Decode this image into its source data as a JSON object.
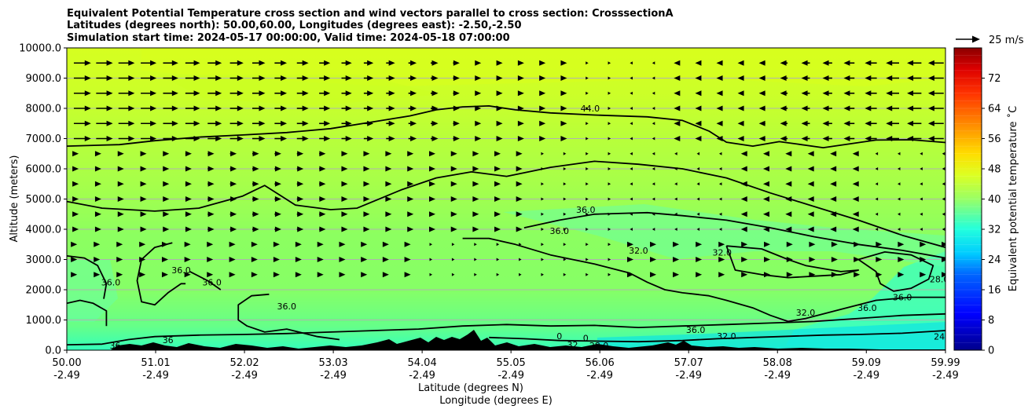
{
  "chart_data": {
    "type": "heatmap",
    "title_lines": [
      "Equivalent Potential Temperature cross section and wind vectors parallel to cross section: CrosssectionA",
      "Latitudes (degrees north): 50.00,60.00, Longitudes (degrees east): -2.50,-2.50",
      "Simulation start time: 2024-05-17 00:00:00, Valid time: 2024-05-18 07:00:00"
    ],
    "ylabel": "Altitude (meters)",
    "xlabel_lat": "Latitude (degrees N)",
    "xlabel_lon": "Longitude (degrees E)",
    "ylim": [
      0,
      10000
    ],
    "y_ticks": [
      {
        "value": 0,
        "label": "0.0"
      },
      {
        "value": 1000,
        "label": "1000.0"
      },
      {
        "value": 2000,
        "label": "2000.0"
      },
      {
        "value": 3000,
        "label": "3000.0"
      },
      {
        "value": 4000,
        "label": "4000.0"
      },
      {
        "value": 5000,
        "label": "5000.0"
      },
      {
        "value": 6000,
        "label": "6000.0"
      },
      {
        "value": 7000,
        "label": "7000.0"
      },
      {
        "value": 8000,
        "label": "8000.0"
      },
      {
        "value": 9000,
        "label": "9000.0"
      },
      {
        "value": 10000,
        "label": "10000.0"
      }
    ],
    "xlim": [
      50.0,
      59.99
    ],
    "x_ticks": [
      {
        "value": 50.0,
        "lat": "50.00",
        "lon": "-2.49"
      },
      {
        "value": 51.01,
        "lat": "51.01",
        "lon": "-2.49"
      },
      {
        "value": 52.02,
        "lat": "52.02",
        "lon": "-2.49"
      },
      {
        "value": 53.03,
        "lat": "53.03",
        "lon": "-2.49"
      },
      {
        "value": 54.04,
        "lat": "54.04",
        "lon": "-2.49"
      },
      {
        "value": 55.05,
        "lat": "55.05",
        "lon": "-2.49"
      },
      {
        "value": 56.06,
        "lat": "56.06",
        "lon": "-2.49"
      },
      {
        "value": 57.07,
        "lat": "57.07",
        "lon": "-2.49"
      },
      {
        "value": 58.08,
        "lat": "58.08",
        "lon": "-2.49"
      },
      {
        "value": 59.09,
        "lat": "59.09",
        "lon": "-2.49"
      },
      {
        "value": 59.99,
        "lat": "59.99",
        "lon": "-2.49"
      }
    ],
    "grid_horizontal": true,
    "colorbar": {
      "label": "Equivalent potential temperature ˚C",
      "range": [
        0,
        80
      ],
      "ticks": [
        0,
        8,
        16,
        24,
        32,
        40,
        48,
        56,
        64,
        72
      ],
      "tick_labels": [
        "0",
        "8",
        "16",
        "24",
        "32",
        "40",
        "48",
        "56",
        "64",
        "72"
      ]
    },
    "quiver_key": {
      "label": "25 m/s",
      "value": 25
    },
    "contours": [
      {
        "level": 44.0,
        "label": "44.0",
        "points": [
          [
            50.0,
            6750
          ],
          [
            50.6,
            6800
          ],
          [
            51.0,
            6930
          ],
          [
            51.5,
            7050
          ],
          [
            52.0,
            7120
          ],
          [
            52.5,
            7200
          ],
          [
            53.0,
            7330
          ],
          [
            53.5,
            7560
          ],
          [
            53.9,
            7750
          ],
          [
            54.2,
            7950
          ],
          [
            54.5,
            8050
          ],
          [
            54.8,
            8080
          ],
          [
            55.1,
            7950
          ],
          [
            55.5,
            7850
          ],
          [
            56.0,
            7780
          ],
          [
            56.6,
            7720
          ],
          [
            57.0,
            7600
          ],
          [
            57.3,
            7250
          ],
          [
            57.5,
            6880
          ],
          [
            57.8,
            6750
          ],
          [
            58.1,
            6900
          ],
          [
            58.3,
            6820
          ],
          [
            58.6,
            6700
          ],
          [
            59.2,
            6950
          ],
          [
            59.6,
            6960
          ],
          [
            59.99,
            6870
          ]
        ]
      },
      {
        "level": 40.0,
        "label": "",
        "points": [
          [
            50.0,
            4920
          ],
          [
            50.4,
            4700
          ],
          [
            51.0,
            4600
          ],
          [
            51.5,
            4700
          ],
          [
            52.0,
            5100
          ],
          [
            52.25,
            5450
          ],
          [
            52.6,
            4800
          ],
          [
            53.0,
            4650
          ],
          [
            53.3,
            4700
          ],
          [
            53.8,
            5300
          ],
          [
            54.2,
            5700
          ],
          [
            54.6,
            5900
          ],
          [
            55.0,
            5750
          ],
          [
            55.5,
            6050
          ],
          [
            56.0,
            6250
          ],
          [
            56.5,
            6150
          ],
          [
            57.0,
            6000
          ],
          [
            57.5,
            5700
          ],
          [
            58.0,
            5200
          ],
          [
            58.5,
            4750
          ],
          [
            59.0,
            4300
          ],
          [
            59.5,
            3800
          ],
          [
            59.99,
            3400
          ]
        ]
      },
      {
        "level": 36.0,
        "label": "36.0",
        "points": [
          [
            54.5,
            3700
          ],
          [
            54.8,
            3700
          ],
          [
            55.1,
            3500
          ],
          [
            55.5,
            3150
          ],
          [
            56.0,
            2850
          ],
          [
            56.4,
            2550
          ],
          [
            56.6,
            2250
          ],
          [
            56.8,
            2000
          ],
          [
            57.0,
            1900
          ],
          [
            57.3,
            1800
          ],
          [
            57.5,
            1650
          ],
          [
            57.8,
            1400
          ],
          [
            58.0,
            1150
          ],
          [
            58.2,
            950
          ],
          [
            58.4,
            1050
          ],
          [
            58.8,
            1350
          ],
          [
            59.2,
            1650
          ],
          [
            59.6,
            1750
          ],
          [
            59.99,
            1750
          ]
        ]
      },
      {
        "level": 36.0,
        "label": "36.0",
        "points": [
          [
            55.2,
            4050
          ],
          [
            55.6,
            4300
          ],
          [
            56.0,
            4500
          ],
          [
            56.6,
            4550
          ],
          [
            57.0,
            4450
          ],
          [
            57.5,
            4300
          ],
          [
            58.0,
            4050
          ],
          [
            58.5,
            3750
          ],
          [
            59.0,
            3500
          ],
          [
            59.5,
            3300
          ],
          [
            59.99,
            3050
          ]
        ]
      },
      {
        "level": 32.0,
        "label": "32.0",
        "points": [
          [
            57.5,
            3450
          ],
          [
            57.9,
            3350
          ],
          [
            58.2,
            3000
          ],
          [
            58.4,
            2800
          ],
          [
            58.6,
            2700
          ],
          [
            58.8,
            2600
          ],
          [
            59.0,
            2650
          ],
          [
            58.8,
            2500
          ],
          [
            58.5,
            2450
          ],
          [
            58.2,
            2400
          ],
          [
            57.9,
            2500
          ],
          [
            57.6,
            2650
          ],
          [
            57.5,
            3450
          ]
        ]
      },
      {
        "level": 36.0,
        "label": "36.0",
        "points": [
          [
            50.0,
            1550
          ],
          [
            50.15,
            1650
          ],
          [
            50.3,
            1550
          ],
          [
            50.45,
            1300
          ],
          [
            50.45,
            800
          ]
        ]
      },
      {
        "level": 36.0,
        "label": "36.0",
        "points": [
          [
            50.0,
            3120
          ],
          [
            50.2,
            3050
          ],
          [
            50.35,
            2800
          ],
          [
            50.45,
            2200
          ],
          [
            50.42,
            1700
          ]
        ]
      },
      {
        "level": 36.0,
        "label": "36.0",
        "points": [
          [
            51.2,
            3550
          ],
          [
            51.0,
            3400
          ],
          [
            50.85,
            3000
          ],
          [
            50.8,
            2300
          ],
          [
            50.85,
            1600
          ],
          [
            51.0,
            1500
          ],
          [
            51.15,
            1900
          ],
          [
            51.3,
            2200
          ],
          [
            51.35,
            2200
          ]
        ]
      },
      {
        "level": 36.0,
        "label": "36.0",
        "points": [
          [
            51.4,
            2600
          ],
          [
            51.6,
            2300
          ],
          [
            51.75,
            2000
          ]
        ]
      },
      {
        "level": 36.0,
        "label": "36.0",
        "points": [
          [
            52.3,
            1850
          ],
          [
            52.1,
            1800
          ],
          [
            51.95,
            1500
          ],
          [
            51.95,
            1000
          ],
          [
            52.05,
            800
          ],
          [
            52.25,
            600
          ],
          [
            52.5,
            700
          ],
          [
            52.85,
            450
          ],
          [
            53.1,
            350
          ]
        ]
      },
      {
        "level": 36.0,
        "label": "36.0",
        "points": [
          [
            50.0,
            180
          ],
          [
            50.4,
            200
          ],
          [
            50.7,
            350
          ],
          [
            51.0,
            450
          ],
          [
            51.5,
            500
          ],
          [
            52.0,
            520
          ],
          [
            52.5,
            550
          ],
          [
            53.0,
            600
          ],
          [
            53.5,
            650
          ],
          [
            54.0,
            700
          ],
          [
            54.5,
            800
          ],
          [
            55.0,
            850
          ],
          [
            55.5,
            800
          ],
          [
            56.0,
            820
          ],
          [
            56.5,
            750
          ],
          [
            57.0,
            800
          ],
          [
            57.5,
            850
          ],
          [
            58.0,
            900
          ],
          [
            58.5,
            950
          ],
          [
            59.0,
            1050
          ],
          [
            59.5,
            1150
          ],
          [
            59.99,
            1200
          ]
        ]
      },
      {
        "level": 32.0,
        "label": "32.0",
        "points": [
          [
            54.8,
            420
          ],
          [
            55.2,
            380
          ],
          [
            55.6,
            320
          ],
          [
            56.0,
            300
          ],
          [
            56.5,
            280
          ],
          [
            57.0,
            320
          ],
          [
            57.4,
            380
          ],
          [
            57.8,
            420
          ],
          [
            58.2,
            460
          ],
          [
            58.6,
            500
          ],
          [
            59.0,
            520
          ],
          [
            59.5,
            560
          ],
          [
            59.99,
            650
          ]
        ]
      },
      {
        "level": 36.0,
        "label": "36.0",
        "points": [
          [
            59.0,
            3000
          ],
          [
            59.3,
            3250
          ],
          [
            59.6,
            3150
          ],
          [
            59.85,
            2800
          ],
          [
            59.8,
            2350
          ],
          [
            59.6,
            2050
          ],
          [
            59.4,
            1950
          ],
          [
            59.25,
            2200
          ],
          [
            59.2,
            2600
          ],
          [
            59.0,
            3000
          ]
        ]
      }
    ],
    "contour_labels": [
      {
        "x": 55.95,
        "y": 7950,
        "text": "44.0"
      },
      {
        "x": 55.9,
        "y": 4600,
        "text": "36.0"
      },
      {
        "x": 55.6,
        "y": 3900,
        "text": "36.0"
      },
      {
        "x": 56.5,
        "y": 3250,
        "text": "32.0"
      },
      {
        "x": 57.45,
        "y": 3180,
        "text": "32.0"
      },
      {
        "x": 58.4,
        "y": 1200,
        "text": "32.0"
      },
      {
        "x": 57.15,
        "y": 620,
        "text": "36.0"
      },
      {
        "x": 57.5,
        "y": 420,
        "text": "32.0"
      },
      {
        "x": 50.5,
        "y": 2200,
        "text": "36.0"
      },
      {
        "x": 51.3,
        "y": 2600,
        "text": "36.0"
      },
      {
        "x": 51.65,
        "y": 2200,
        "text": "36.0"
      },
      {
        "x": 52.5,
        "y": 1400,
        "text": "36.0"
      },
      {
        "x": 50.55,
        "y": 100,
        "text": "36"
      },
      {
        "x": 51.15,
        "y": 280,
        "text": "36"
      },
      {
        "x": 55.6,
        "y": 420,
        "text": "0"
      },
      {
        "x": 55.75,
        "y": 130,
        "text": "32"
      },
      {
        "x": 55.9,
        "y": 350,
        "text": "0"
      },
      {
        "x": 56.05,
        "y": 100,
        "text": "28.0"
      },
      {
        "x": 59.1,
        "y": 1350,
        "text": "36.0"
      },
      {
        "x": 59.5,
        "y": 1700,
        "text": "36.0"
      },
      {
        "x": 59.92,
        "y": 2300,
        "text": "28.0"
      },
      {
        "x": 59.92,
        "y": 400,
        "text": "24"
      }
    ]
  }
}
